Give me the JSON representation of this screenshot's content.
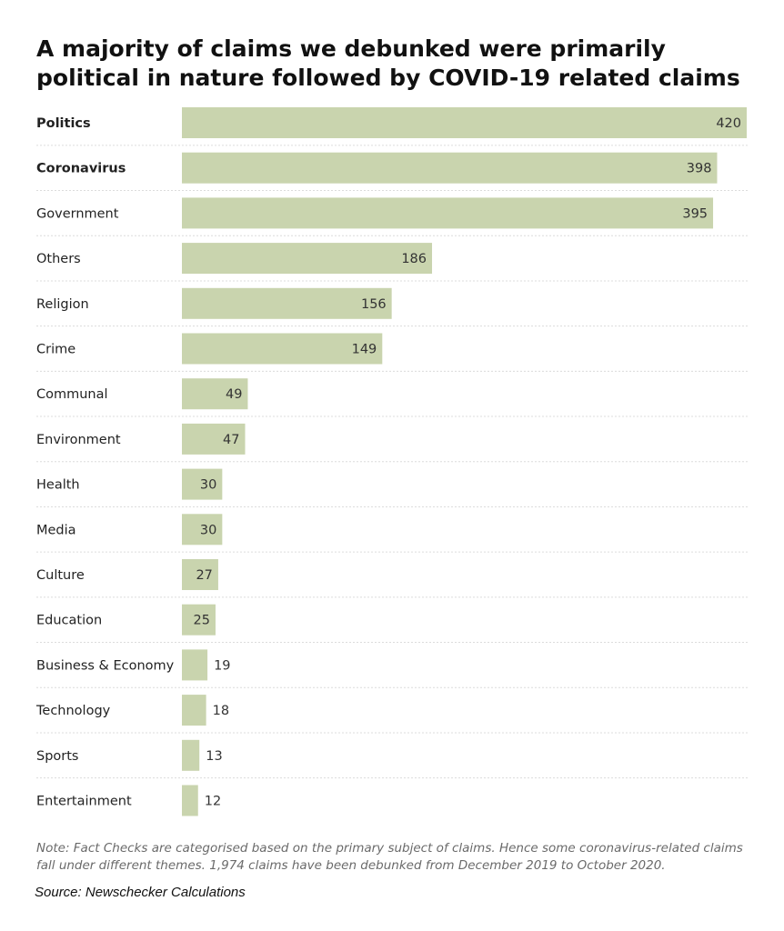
{
  "chart_data": {
    "type": "bar",
    "orientation": "horizontal",
    "title": "A majority of claims we debunked were primarily political in nature followed by COVID-19 related claims",
    "categories": [
      "Politics",
      "Coronavirus",
      "Government",
      "Others",
      "Religion",
      "Crime",
      "Communal",
      "Environment",
      "Health",
      "Media",
      "Culture",
      "Education",
      "Business & Economy",
      "Technology",
      "Sports",
      "Entertainment"
    ],
    "bold_categories": [
      "Politics",
      "Coronavirus"
    ],
    "values": [
      420,
      398,
      395,
      186,
      156,
      149,
      49,
      47,
      30,
      30,
      27,
      25,
      19,
      18,
      13,
      12
    ],
    "xlim": [
      0,
      420
    ],
    "xlabel": "",
    "ylabel": "",
    "data_labels": true,
    "grid": false,
    "legend": "none"
  },
  "note": "Note: Fact Checks are categorised based on the primary subject of claims. Hence some coronavirus-related claims fall under different themes. 1,974 claims have been debunked from December 2019 to October 2020.",
  "source": "Source: Newschecker Calculations",
  "colors": {
    "bar": "#c9d4ae",
    "row_separator": "#dcdcdc",
    "text": "#222222"
  }
}
